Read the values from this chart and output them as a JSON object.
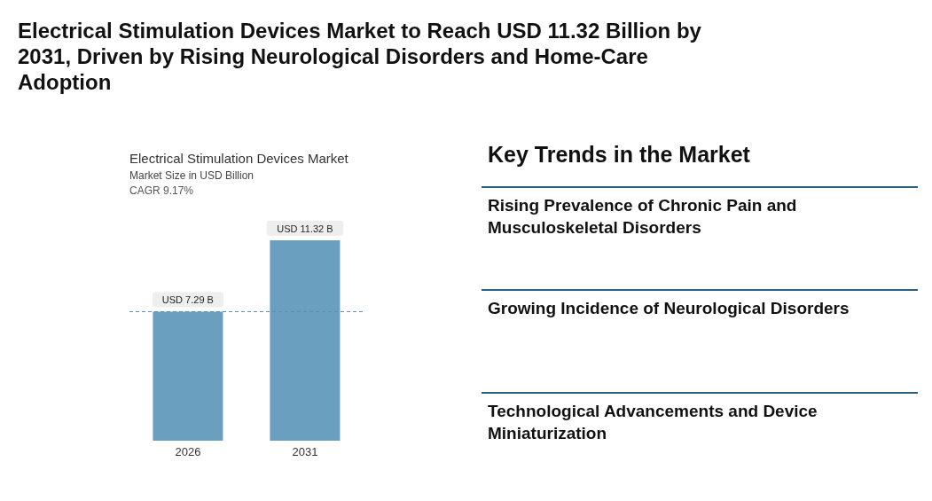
{
  "chart_data": [
    {
      "type": "bar",
      "title": "Electrical Stimulation Devices Market to Reach USD 11.32 Billion by 2031, Driven by Rising Neurological Disorders and Home-Care Adoption",
      "subtitle": "Electrical Stimulation Devices Market",
      "ylabel": "Market Size in USD Billion",
      "annotations": [
        "CAGR 9.17%"
      ],
      "categories": [
        "2026",
        "2031"
      ],
      "values": [
        7.29,
        11.32
      ],
      "color": "#6a9fc0",
      "value_labels": [
        "USD 7.29 B",
        "USD 11.32 B"
      ],
      "ref_lines": [
        {
          "axis": "y",
          "value": 7.29,
          "color": "#5b8db8",
          "line_style": "dashed"
        }
      ],
      "tick_labels": "x"
    },
    {
      "type": "other",
      "title": "Key Trends in the Market",
      "annotations": [
        "Rising Prevalence of Chronic Pain and Musculoskeletal Disorders",
        "Growing Incidence of Neurological Disorders",
        "Technological Advancements and Device Miniaturization"
      ]
    }
  ]
}
